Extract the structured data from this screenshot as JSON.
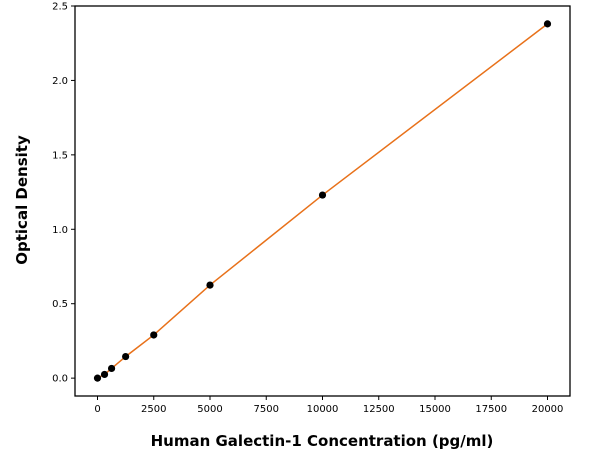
{
  "chart_data": {
    "type": "scatter",
    "title": "",
    "xlabel": "Human Galectin-1 Concentration (pg/ml)",
    "ylabel": "Optical Density",
    "xlim": [
      -1000,
      21000
    ],
    "ylim": [
      -0.12,
      2.5
    ],
    "xticks": [
      0,
      2500,
      5000,
      7500,
      10000,
      12500,
      15000,
      17500,
      20000
    ],
    "yticks": [
      0.0,
      0.5,
      1.0,
      1.5,
      2.0,
      2.5
    ],
    "grid": false,
    "legend": "none",
    "series": [
      {
        "x": [
          0,
          312.5,
          625,
          1250,
          2500,
          5000,
          10000,
          20000
        ],
        "y": [
          0.0,
          0.025,
          0.065,
          0.145,
          0.29,
          0.625,
          1.23,
          2.38
        ],
        "marker_color": "#000000",
        "line_color": "#e8711a",
        "fit": "line"
      }
    ]
  }
}
